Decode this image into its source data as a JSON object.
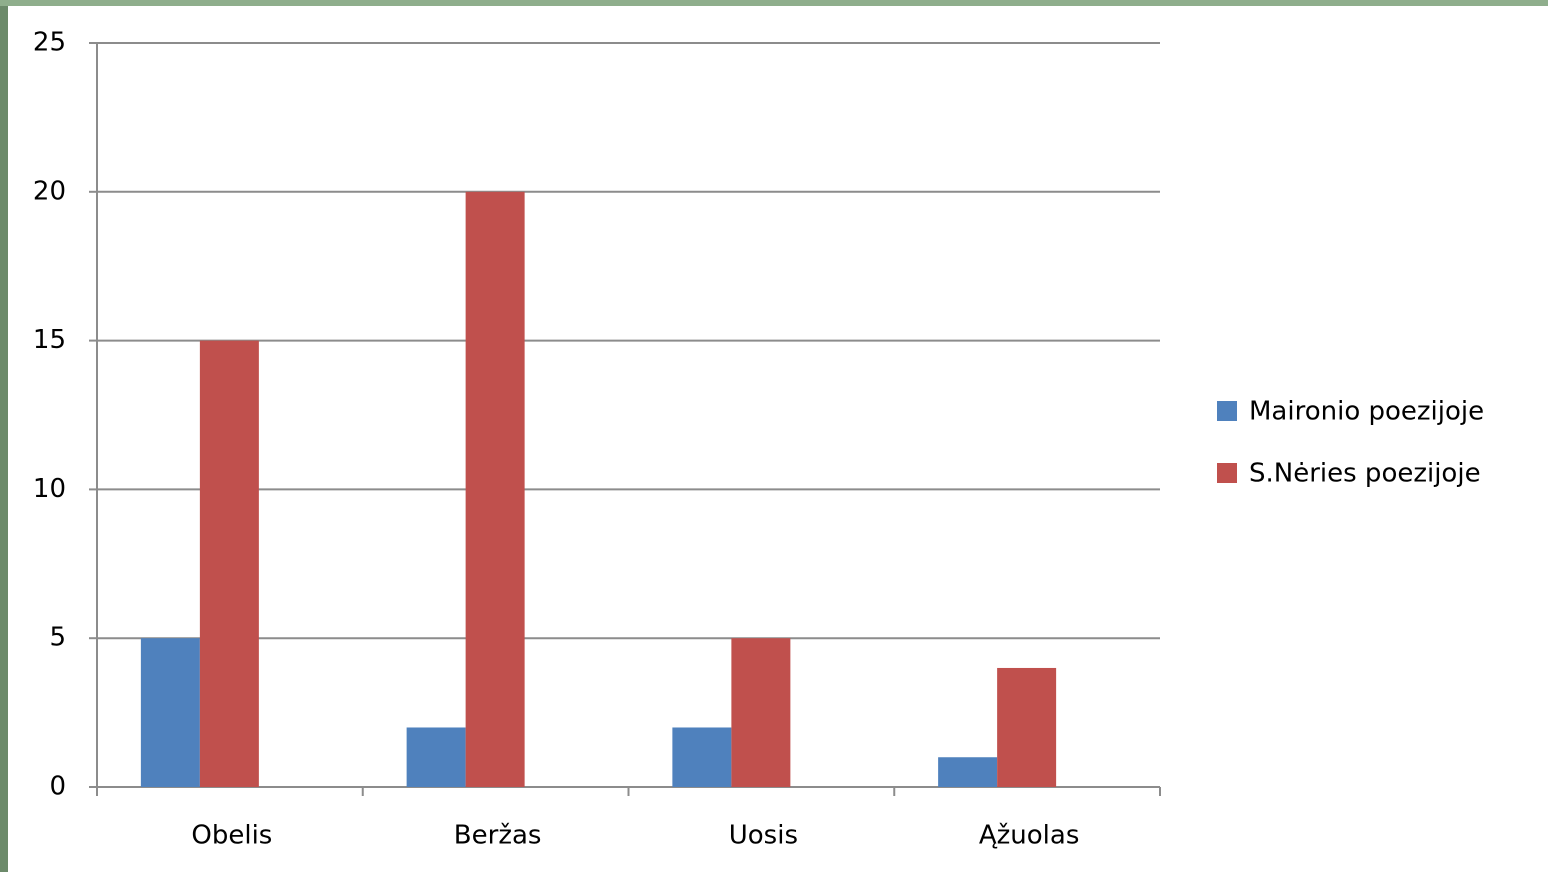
{
  "chart_data": {
    "type": "bar",
    "categories": [
      "Obelis",
      "Beržas",
      "Uosis",
      "Ąžuolas"
    ],
    "series": [
      {
        "name": "Maironio poezijoje",
        "color": "#4f81bd",
        "values": [
          5,
          2,
          2,
          1
        ]
      },
      {
        "name": "S.Nėries poezijoje",
        "color": "#c0504d",
        "values": [
          15,
          20,
          5,
          4
        ]
      }
    ],
    "ylim": [
      0,
      25
    ],
    "yticks": [
      0,
      5,
      10,
      15,
      20,
      25
    ],
    "grid": true,
    "legend": "right"
  }
}
